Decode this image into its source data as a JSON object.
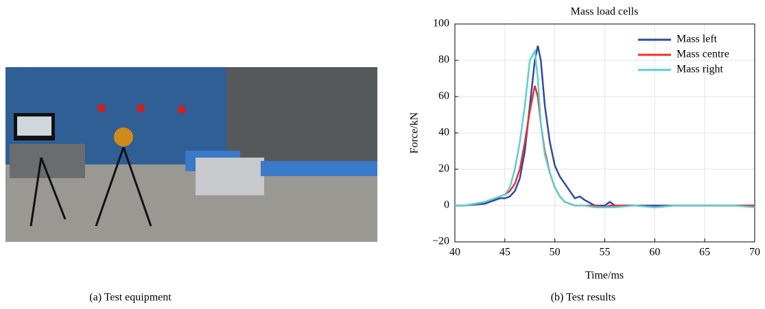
{
  "captions": {
    "left": "(a) Test equipment",
    "right": "(b) Test results"
  },
  "chart_data": {
    "type": "line",
    "title": "Mass load cells",
    "x_label": "Time/ms",
    "y_label": "Force/kN",
    "x": [
      40,
      41,
      42,
      43,
      44,
      44.5,
      45,
      45.5,
      46,
      46.5,
      47,
      47.5,
      48,
      48.3,
      48.6,
      49,
      49.5,
      50,
      50.5,
      51,
      51.5,
      52,
      52.5,
      53,
      54,
      55,
      55.5,
      56,
      58,
      60,
      62,
      64,
      66,
      68,
      70
    ],
    "series": [
      {
        "name": "Mass left",
        "color": "#2b4aa6",
        "values": [
          0,
          0,
          0.5,
          1,
          3,
          4,
          4,
          5,
          8,
          15,
          30,
          55,
          80,
          88,
          80,
          55,
          35,
          22,
          16,
          12,
          8,
          4,
          5,
          3,
          0,
          0,
          2,
          0,
          0,
          0,
          0,
          0,
          0,
          0,
          0
        ]
      },
      {
        "name": "Mass centre",
        "color": "#e8312f",
        "values": [
          0,
          0,
          1,
          2,
          4,
          5,
          6,
          8,
          12,
          20,
          35,
          52,
          66,
          60,
          45,
          30,
          18,
          10,
          5,
          2,
          1,
          0,
          0,
          0,
          0,
          -1,
          0,
          0,
          0,
          -1,
          0,
          0,
          0,
          0,
          0
        ]
      },
      {
        "name": "Mass right",
        "color": "#5ccfd0",
        "values": [
          0,
          0,
          1,
          2,
          4,
          5,
          6,
          10,
          20,
          35,
          55,
          80,
          85,
          70,
          45,
          28,
          18,
          10,
          5,
          2,
          1,
          0,
          0,
          0,
          -1,
          -1,
          -1,
          -1,
          0,
          -1,
          0,
          0,
          0,
          0,
          -1
        ]
      }
    ],
    "xlim": [
      40,
      70
    ],
    "xticks": [
      40,
      45,
      50,
      55,
      60,
      65,
      70
    ],
    "ylim": [
      -20,
      100
    ],
    "yticks": [
      {
        "value": -20,
        "label": "−20"
      },
      0,
      20,
      40,
      60,
      80,
      100
    ],
    "grid": true,
    "legend": "upper right"
  }
}
